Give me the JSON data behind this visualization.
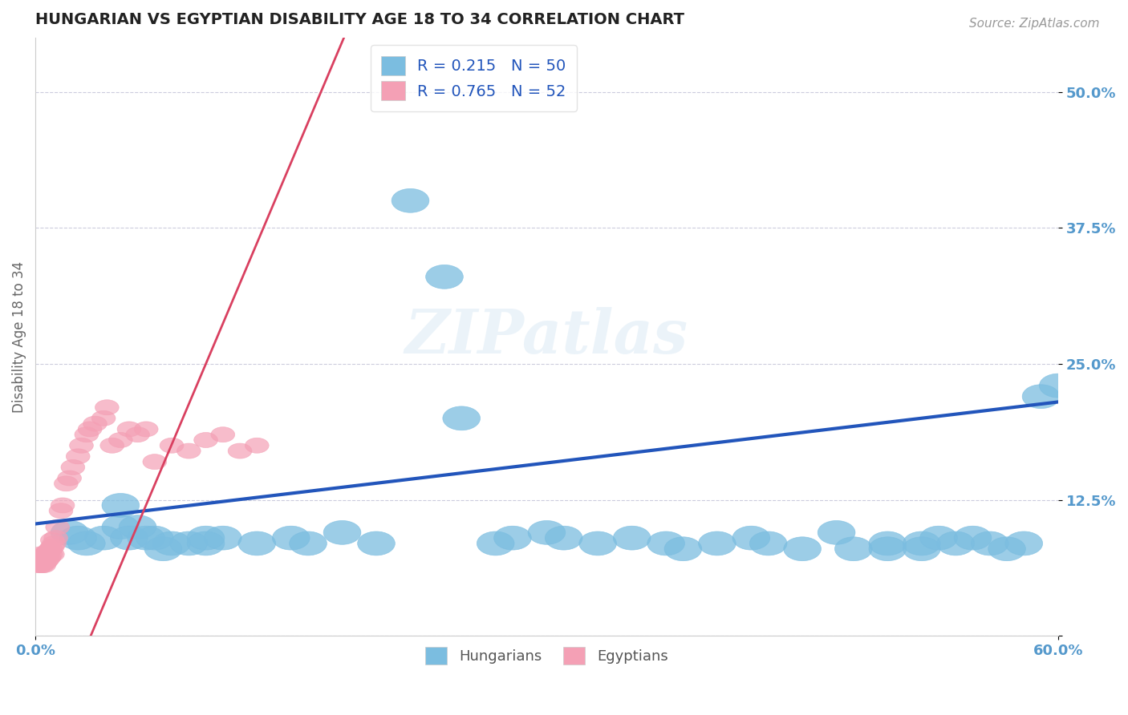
{
  "title": "HUNGARIAN VS EGYPTIAN DISABILITY AGE 18 TO 34 CORRELATION CHART",
  "source": "Source: ZipAtlas.com",
  "ylabel": "Disability Age 18 to 34",
  "legend_blue_r": "R = 0.215",
  "legend_blue_n": "N = 50",
  "legend_pink_r": "R = 0.765",
  "legend_pink_n": "N = 52",
  "legend_blue_label": "Hungarians",
  "legend_pink_label": "Egyptians",
  "ytick_labels": [
    "",
    "12.5%",
    "25.0%",
    "37.5%",
    "50.0%"
  ],
  "ytick_values": [
    0.0,
    0.125,
    0.25,
    0.375,
    0.5
  ],
  "blue_color": "#7bbde0",
  "pink_color": "#f4a0b5",
  "blue_line_color": "#2255bb",
  "pink_line_color": "#d94060",
  "axis_label_color": "#5599cc",
  "background_color": "#ffffff",
  "xmin": 0.0,
  "xmax": 0.6,
  "ymin": 0.0,
  "ymax": 0.55,
  "hungarian_x": [
    0.02,
    0.025,
    0.03,
    0.04,
    0.05,
    0.05,
    0.055,
    0.06,
    0.065,
    0.07,
    0.075,
    0.08,
    0.09,
    0.1,
    0.1,
    0.11,
    0.13,
    0.15,
    0.16,
    0.18,
    0.2,
    0.22,
    0.24,
    0.25,
    0.27,
    0.28,
    0.3,
    0.31,
    0.33,
    0.35,
    0.37,
    0.38,
    0.4,
    0.42,
    0.43,
    0.45,
    0.47,
    0.48,
    0.5,
    0.5,
    0.52,
    0.52,
    0.53,
    0.54,
    0.55,
    0.56,
    0.57,
    0.58,
    0.59,
    0.6
  ],
  "hungarian_y": [
    0.095,
    0.09,
    0.085,
    0.09,
    0.12,
    0.1,
    0.09,
    0.1,
    0.09,
    0.09,
    0.08,
    0.085,
    0.085,
    0.085,
    0.09,
    0.09,
    0.085,
    0.09,
    0.085,
    0.095,
    0.085,
    0.4,
    0.33,
    0.2,
    0.085,
    0.09,
    0.095,
    0.09,
    0.085,
    0.09,
    0.085,
    0.08,
    0.085,
    0.09,
    0.085,
    0.08,
    0.095,
    0.08,
    0.085,
    0.08,
    0.085,
    0.08,
    0.09,
    0.085,
    0.09,
    0.085,
    0.08,
    0.085,
    0.22,
    0.23
  ],
  "egyptian_x": [
    0.001,
    0.002,
    0.002,
    0.003,
    0.003,
    0.003,
    0.004,
    0.004,
    0.004,
    0.005,
    0.005,
    0.005,
    0.006,
    0.006,
    0.006,
    0.007,
    0.007,
    0.007,
    0.008,
    0.008,
    0.009,
    0.009,
    0.01,
    0.01,
    0.01,
    0.011,
    0.012,
    0.013,
    0.015,
    0.016,
    0.018,
    0.02,
    0.022,
    0.025,
    0.027,
    0.03,
    0.032,
    0.035,
    0.04,
    0.042,
    0.045,
    0.05,
    0.055,
    0.06,
    0.065,
    0.07,
    0.08,
    0.09,
    0.1,
    0.11,
    0.12,
    0.13
  ],
  "egyptian_y": [
    0.065,
    0.07,
    0.068,
    0.065,
    0.07,
    0.075,
    0.065,
    0.068,
    0.072,
    0.065,
    0.07,
    0.073,
    0.068,
    0.072,
    0.075,
    0.07,
    0.073,
    0.077,
    0.072,
    0.078,
    0.075,
    0.08,
    0.075,
    0.082,
    0.088,
    0.085,
    0.09,
    0.1,
    0.115,
    0.12,
    0.14,
    0.145,
    0.155,
    0.165,
    0.175,
    0.185,
    0.19,
    0.195,
    0.2,
    0.21,
    0.175,
    0.18,
    0.19,
    0.185,
    0.19,
    0.16,
    0.175,
    0.17,
    0.18,
    0.185,
    0.17,
    0.175
  ]
}
